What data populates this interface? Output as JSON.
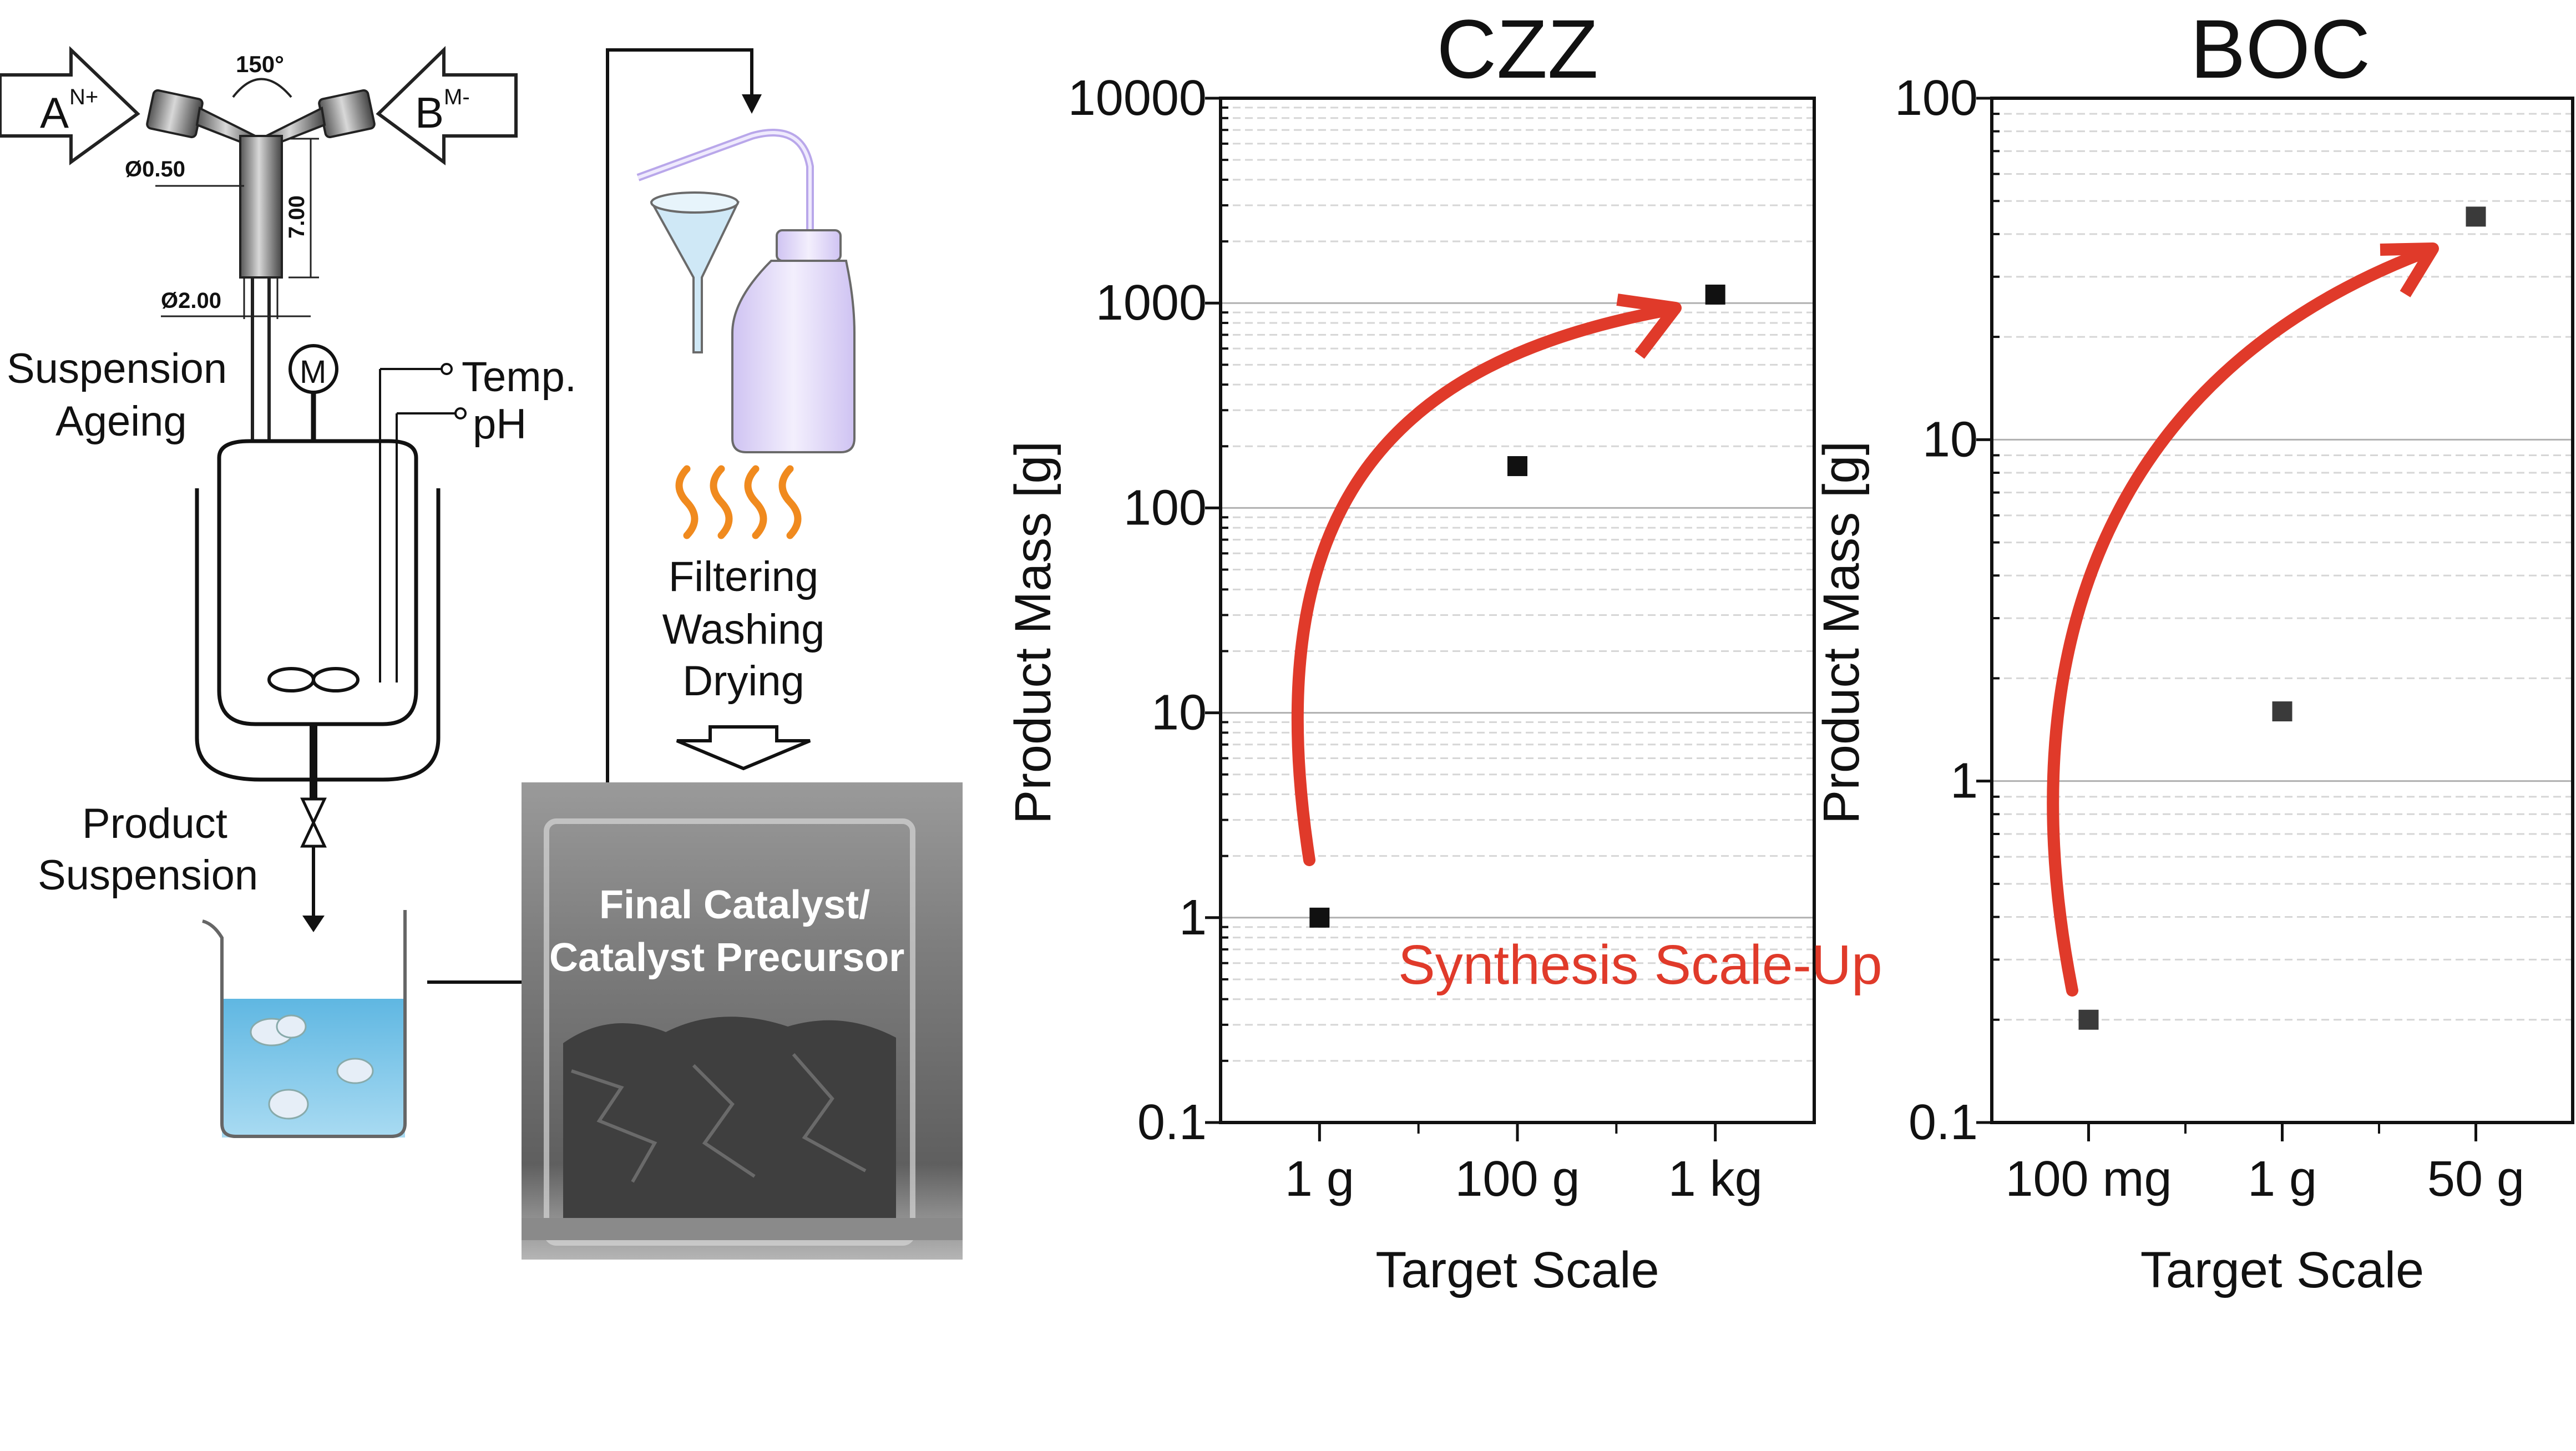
{
  "process": {
    "inlet_a": "A",
    "inlet_a_charge": "N+",
    "inlet_b": "B",
    "inlet_b_charge": "M-",
    "mixer_angle": "150°",
    "dim_inlet": "Ø0.50",
    "dim_length": "7.00",
    "dim_outlet": "Ø2.00",
    "ageing_line1": "Suspension",
    "ageing_line2": "Ageing",
    "motor_label": "M",
    "temp_label": "Temp.",
    "ph_label": "pH",
    "product_line1": "Product",
    "product_line2": "Suspension",
    "steps_line1": "Filtering",
    "steps_line2": "Washing",
    "steps_line3": "Drying",
    "photo_line1": "Final Catalyst/",
    "photo_line2": "Catalyst Precursor",
    "scaleup_label": "Synthesis Scale-Up"
  },
  "colors": {
    "red_arrow": "#e03a2a",
    "orange_heat": "#f08a1e",
    "water_blue": "#7cc4e6",
    "bottle_lavender": "#ece6fb",
    "marker_dark": "#111111",
    "marker_grey": "#3a3a3a"
  },
  "chart_data": [
    {
      "type": "scatter",
      "title": "CZZ",
      "xlabel": "Target Scale",
      "ylabel": "Product Mass [g]",
      "yscale": "log",
      "ylim": [
        0.1,
        10000
      ],
      "yticks": [
        "0.1",
        "1",
        "10",
        "100",
        "1000",
        "10000"
      ],
      "categories": [
        "1 g",
        "100 g",
        "1 kg"
      ],
      "values": [
        1,
        160,
        1100
      ],
      "grid": true
    },
    {
      "type": "scatter",
      "title": "BOC",
      "xlabel": "Target Scale",
      "ylabel": "Product Mass [g]",
      "yscale": "log",
      "ylim": [
        0.1,
        100
      ],
      "yticks": [
        "0.1",
        "1",
        "10",
        "100"
      ],
      "categories": [
        "100 mg",
        "1 g",
        "50 g"
      ],
      "values": [
        0.2,
        1.6,
        45
      ],
      "grid": true
    }
  ]
}
